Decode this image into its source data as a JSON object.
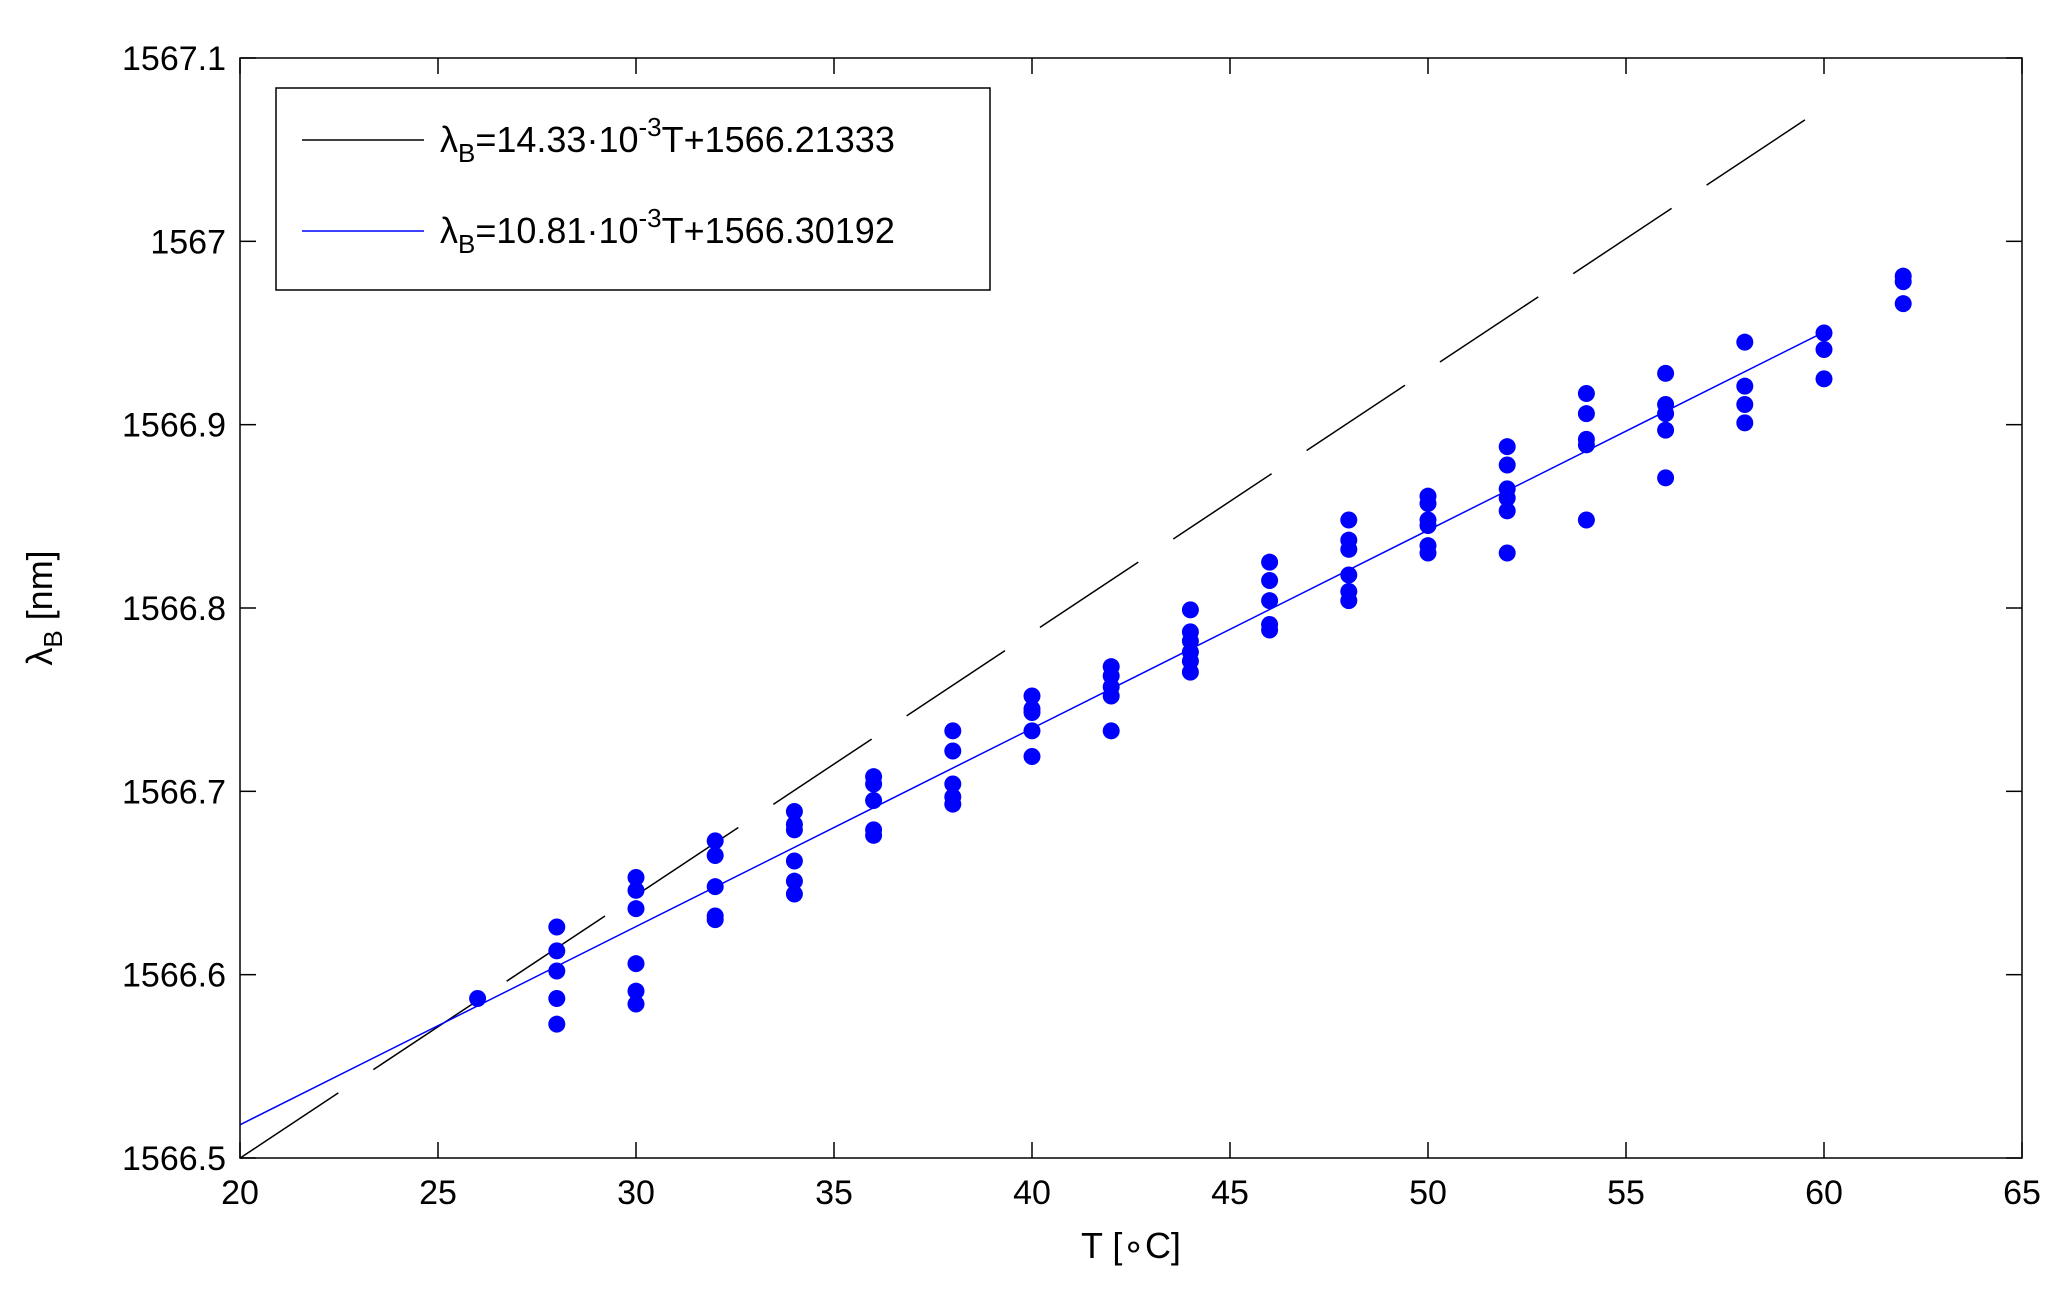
{
  "chart_data": {
    "type": "scatter",
    "xlabel": {
      "main": "T [",
      "symbol": "∘",
      "unit": "C]"
    },
    "ylabel": {
      "symbol": "λ",
      "subscript": "B",
      "unit": " [nm]"
    },
    "xlim": [
      20,
      65
    ],
    "ylim": [
      1566.5,
      1567.1
    ],
    "xticks": [
      "20",
      "25",
      "30",
      "35",
      "40",
      "45",
      "50",
      "55",
      "60",
      "65"
    ],
    "yticks": [
      "1566.5",
      "1566.6",
      "1566.7",
      "1566.8",
      "1566.9",
      "1567",
      "1567.1"
    ],
    "grid": false,
    "legend_position": "top-left",
    "fit_lines": [
      {
        "slope": 0.01433,
        "intercept": 1566.21333,
        "x_range": [
          20,
          60
        ],
        "color": "#000000",
        "style": "dashed",
        "label": {
          "lambda": "λ",
          "sub": "B",
          "pre": "=14.33·10",
          "sup": "-3",
          "post": "T+1566.21333"
        }
      },
      {
        "slope": 0.01081,
        "intercept": 1566.30192,
        "x_range": [
          20,
          60
        ],
        "color": "#0000ff",
        "style": "solid",
        "label": {
          "lambda": "λ",
          "sub": "B",
          "pre": "=10.81·10",
          "sup": "-3",
          "post": "T+1566.30192"
        }
      }
    ],
    "points": {
      "color": "#0000ff",
      "values": [
        [
          26,
          1566.587
        ],
        [
          28,
          1566.626
        ],
        [
          28,
          1566.613
        ],
        [
          28,
          1566.602
        ],
        [
          28,
          1566.587
        ],
        [
          28,
          1566.573
        ],
        [
          30,
          1566.653
        ],
        [
          30,
          1566.646
        ],
        [
          30,
          1566.636
        ],
        [
          30,
          1566.606
        ],
        [
          30,
          1566.591
        ],
        [
          30,
          1566.584
        ],
        [
          32,
          1566.673
        ],
        [
          32,
          1566.665
        ],
        [
          32,
          1566.648
        ],
        [
          32,
          1566.632
        ],
        [
          32,
          1566.63
        ],
        [
          34,
          1566.689
        ],
        [
          34,
          1566.682
        ],
        [
          34,
          1566.679
        ],
        [
          34,
          1566.662
        ],
        [
          34,
          1566.651
        ],
        [
          34,
          1566.644
        ],
        [
          36,
          1566.708
        ],
        [
          36,
          1566.704
        ],
        [
          36,
          1566.695
        ],
        [
          36,
          1566.679
        ],
        [
          36,
          1566.676
        ],
        [
          38,
          1566.733
        ],
        [
          38,
          1566.722
        ],
        [
          38,
          1566.704
        ],
        [
          38,
          1566.697
        ],
        [
          38,
          1566.693
        ],
        [
          40,
          1566.752
        ],
        [
          40,
          1566.745
        ],
        [
          40,
          1566.743
        ],
        [
          40,
          1566.733
        ],
        [
          40,
          1566.719
        ],
        [
          42,
          1566.768
        ],
        [
          42,
          1566.763
        ],
        [
          42,
          1566.757
        ],
        [
          42,
          1566.752
        ],
        [
          42,
          1566.733
        ],
        [
          44,
          1566.799
        ],
        [
          44,
          1566.787
        ],
        [
          44,
          1566.782
        ],
        [
          44,
          1566.776
        ],
        [
          44,
          1566.771
        ],
        [
          44,
          1566.765
        ],
        [
          46,
          1566.825
        ],
        [
          46,
          1566.815
        ],
        [
          46,
          1566.804
        ],
        [
          46,
          1566.791
        ],
        [
          46,
          1566.788
        ],
        [
          48,
          1566.848
        ],
        [
          48,
          1566.837
        ],
        [
          48,
          1566.832
        ],
        [
          48,
          1566.818
        ],
        [
          48,
          1566.809
        ],
        [
          48,
          1566.804
        ],
        [
          50,
          1566.861
        ],
        [
          50,
          1566.857
        ],
        [
          50,
          1566.848
        ],
        [
          50,
          1566.845
        ],
        [
          50,
          1566.834
        ],
        [
          50,
          1566.83
        ],
        [
          52,
          1566.888
        ],
        [
          52,
          1566.878
        ],
        [
          52,
          1566.865
        ],
        [
          52,
          1566.86
        ],
        [
          52,
          1566.853
        ],
        [
          52,
          1566.83
        ],
        [
          54,
          1566.917
        ],
        [
          54,
          1566.906
        ],
        [
          54,
          1566.892
        ],
        [
          54,
          1566.889
        ],
        [
          54,
          1566.848
        ],
        [
          56,
          1566.928
        ],
        [
          56,
          1566.911
        ],
        [
          56,
          1566.906
        ],
        [
          56,
          1566.897
        ],
        [
          56,
          1566.871
        ],
        [
          58,
          1566.945
        ],
        [
          58,
          1566.921
        ],
        [
          58,
          1566.911
        ],
        [
          58,
          1566.901
        ],
        [
          60,
          1566.95
        ],
        [
          60,
          1566.941
        ],
        [
          60,
          1566.925
        ],
        [
          62,
          1566.981
        ],
        [
          62,
          1566.978
        ],
        [
          62,
          1566.966
        ]
      ]
    }
  }
}
